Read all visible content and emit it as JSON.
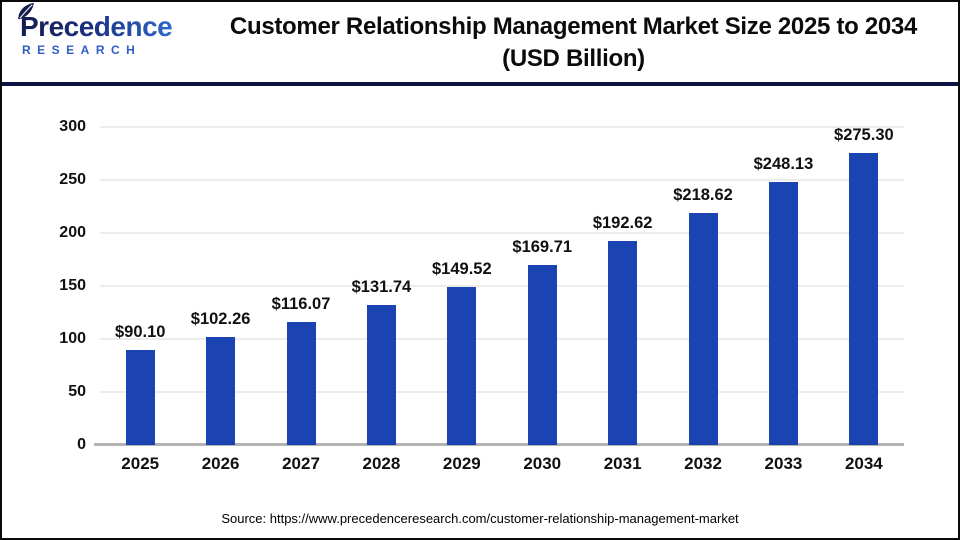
{
  "header": {
    "logo": {
      "name": "Precedence Research",
      "line1": "Precedence",
      "line2": "RESEARCH",
      "navy": "#141d4d",
      "blue": "#2f5cc5"
    },
    "title_line1": "Customer Relationship Management Market Size 2025 to 2034",
    "title_line2": "(USD Billion)"
  },
  "chart_data": {
    "type": "bar",
    "title": "Customer Relationship Management Market Size 2025 to 2034 (USD Billion)",
    "categories": [
      "2025",
      "2026",
      "2027",
      "2028",
      "2029",
      "2030",
      "2031",
      "2032",
      "2033",
      "2034"
    ],
    "values": [
      90.1,
      102.26,
      116.07,
      131.74,
      149.52,
      169.71,
      192.62,
      218.62,
      248.13,
      275.3
    ],
    "value_labels": [
      "$90.10",
      "$102.26",
      "$116.07",
      "$131.74",
      "$149.52",
      "$169.71",
      "$192.62",
      "$218.62",
      "$248.13",
      "$275.30"
    ],
    "xlabel": "",
    "ylabel": "",
    "ylim": [
      0,
      300
    ],
    "yticks": [
      0,
      50,
      100,
      150,
      200,
      250,
      300
    ],
    "grid": true,
    "legend": "none",
    "bar_color": "#1B44B2",
    "gridline_color": "#ECECEC",
    "axis_line_color": "#B3B3B3",
    "label_color": "#111111"
  },
  "footer": {
    "source": "Source: https://www.precedenceresearch.com/customer-relationship-management-market"
  }
}
